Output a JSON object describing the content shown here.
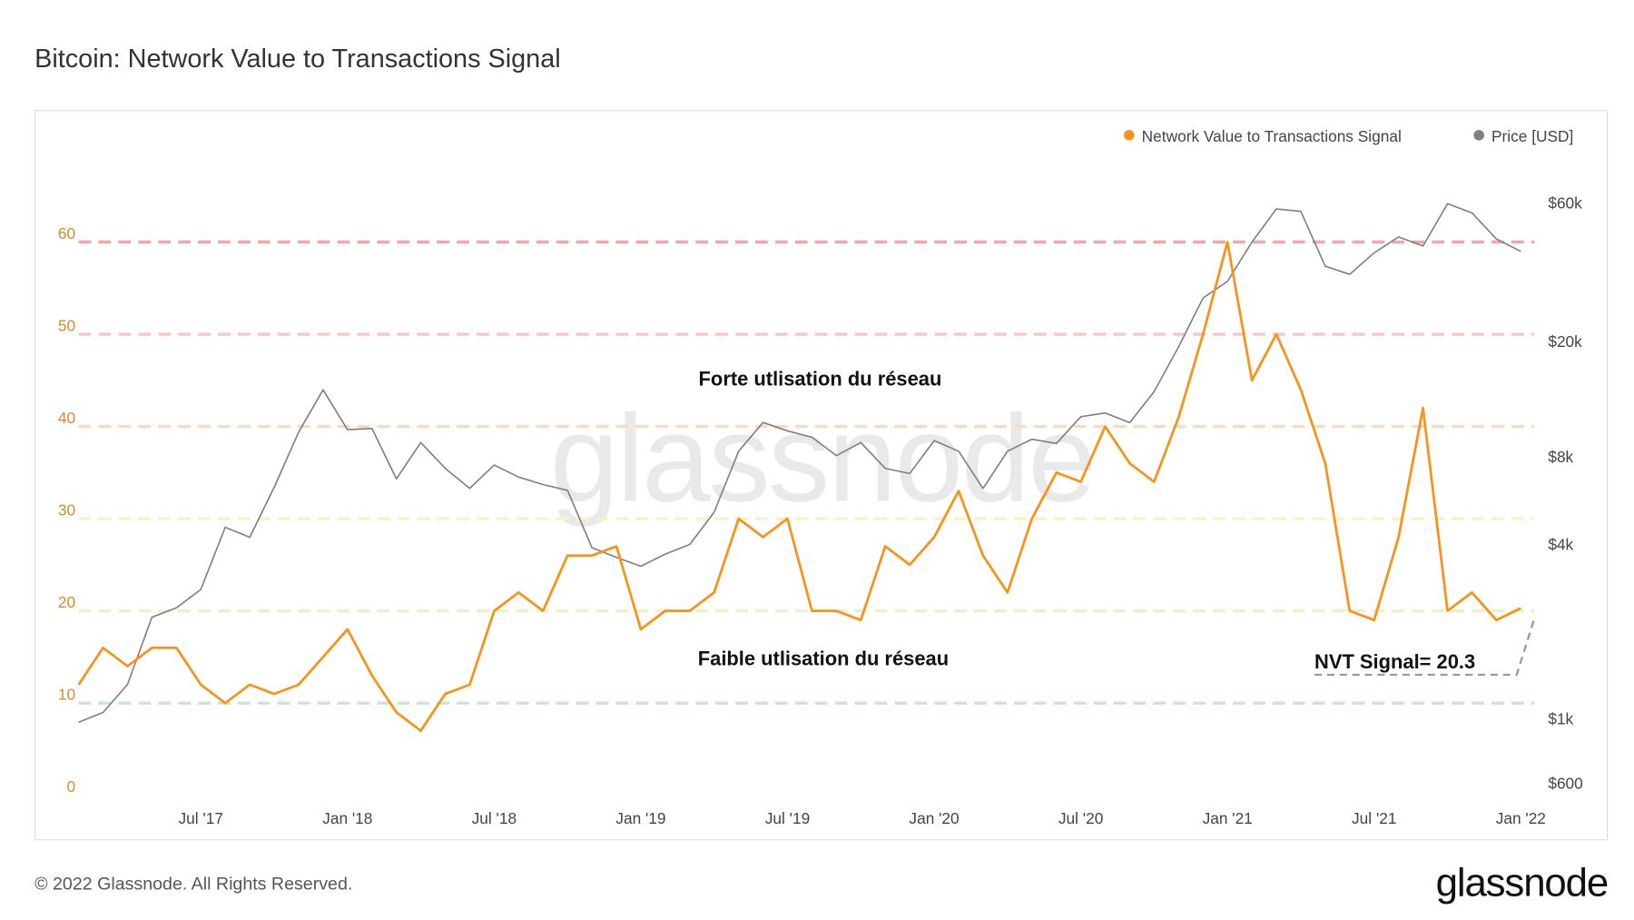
{
  "chart_data": {
    "type": "line",
    "title": "Bitcoin: Network Value to Transactions Signal",
    "x": [
      "2017-02",
      "2017-03",
      "2017-04",
      "2017-05",
      "2017-06",
      "2017-07",
      "2017-08",
      "2017-09",
      "2017-10",
      "2017-11",
      "2017-12",
      "2018-01",
      "2018-02",
      "2018-03",
      "2018-04",
      "2018-05",
      "2018-06",
      "2018-07",
      "2018-08",
      "2018-09",
      "2018-10",
      "2018-11",
      "2018-12",
      "2019-01",
      "2019-02",
      "2019-03",
      "2019-04",
      "2019-05",
      "2019-06",
      "2019-07",
      "2019-08",
      "2019-09",
      "2019-10",
      "2019-11",
      "2019-12",
      "2020-01",
      "2020-02",
      "2020-03",
      "2020-04",
      "2020-05",
      "2020-06",
      "2020-07",
      "2020-08",
      "2020-09",
      "2020-10",
      "2020-11",
      "2020-12",
      "2021-01",
      "2021-02",
      "2021-03",
      "2021-04",
      "2021-05",
      "2021-06",
      "2021-07",
      "2021-08",
      "2021-09",
      "2021-10",
      "2021-11",
      "2021-12",
      "2022-01"
    ],
    "xlim": [
      "2017-02",
      "2022-01"
    ],
    "xticks": [
      {
        "value": "2017-07",
        "label": "Jul '17"
      },
      {
        "value": "2018-01",
        "label": "Jan '18"
      },
      {
        "value": "2018-07",
        "label": "Jul '18"
      },
      {
        "value": "2019-01",
        "label": "Jan '19"
      },
      {
        "value": "2019-07",
        "label": "Jul '19"
      },
      {
        "value": "2020-01",
        "label": "Jan '20"
      },
      {
        "value": "2020-07",
        "label": "Jul '20"
      },
      {
        "value": "2021-01",
        "label": "Jan '21"
      },
      {
        "value": "2021-07",
        "label": "Jul '21"
      },
      {
        "value": "2022-01",
        "label": "Jan '22"
      }
    ],
    "ylim": [
      0,
      70
    ],
    "yticks": [
      0,
      10,
      20,
      30,
      40,
      50,
      60
    ],
    "y2lim": [
      560,
      94000
    ],
    "y2scale": "log",
    "y2ticks": [
      {
        "value": 600,
        "label": "$600"
      },
      {
        "value": 1000,
        "label": "$1k"
      },
      {
        "value": 4000,
        "label": "$4k"
      },
      {
        "value": 8000,
        "label": "$8k"
      },
      {
        "value": 20000,
        "label": "$20k"
      },
      {
        "value": 60000,
        "label": "$60k"
      }
    ],
    "reference_lines": [
      {
        "value": 10,
        "color": "#c9e6d2"
      },
      {
        "value": 20,
        "color": "#eef0c8"
      },
      {
        "value": 30,
        "color": "#fbf0c6"
      },
      {
        "value": 40,
        "color": "#fbd9c4"
      },
      {
        "value": 50,
        "color": "#f8c6c6"
      },
      {
        "value": 60,
        "color": "#f3a6a6"
      }
    ],
    "legend": "top-right",
    "series": [
      {
        "name": "Network Value to Transactions Signal",
        "color": "#f7931a",
        "values": [
          12,
          16,
          14,
          16,
          16,
          12,
          10,
          12,
          11,
          12,
          15,
          18,
          13,
          9,
          7,
          11,
          12,
          20,
          22,
          20,
          26,
          26,
          27,
          18,
          20,
          20,
          22,
          30,
          28,
          30,
          20,
          20,
          19,
          27,
          25,
          28,
          33,
          26,
          22,
          30,
          35,
          34,
          40,
          36,
          34,
          41,
          50,
          60,
          45,
          50,
          44,
          36,
          20,
          19,
          28,
          42,
          20,
          22,
          19,
          20.3
        ]
      },
      {
        "name": "Price [USD]",
        "color": "#7f7f7f",
        "axis": "y2",
        "values": [
          1000,
          1080,
          1350,
          2300,
          2480,
          2870,
          4700,
          4340,
          6450,
          10000,
          14000,
          10200,
          10300,
          6900,
          9200,
          7500,
          6400,
          7700,
          7000,
          6600,
          6300,
          4000,
          3700,
          3450,
          3800,
          4100,
          5300,
          8600,
          10800,
          10100,
          9600,
          8300,
          9200,
          7500,
          7200,
          9350,
          8600,
          6400,
          8600,
          9450,
          9140,
          11300,
          11650,
          10780,
          13800,
          19700,
          29000,
          33100,
          45200,
          58800,
          57700,
          37300,
          35000,
          41500,
          47100,
          43800,
          61300,
          57000,
          46300,
          42000
        ]
      }
    ],
    "annotations": [
      "Forte utlisation du réseau",
      "Faible utlisation du réseau",
      "NVT Signal= 20.3"
    ]
  },
  "watermark": "glassnode",
  "footer": "© 2022 Glassnode. All Rights Reserved.",
  "logo": "glassnode"
}
